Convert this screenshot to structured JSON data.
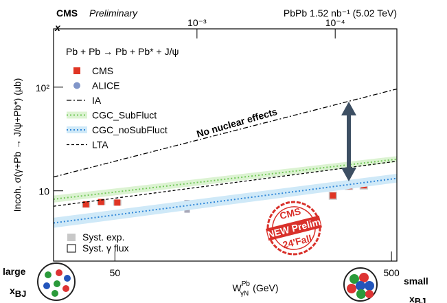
{
  "chart_data": {
    "type": "line",
    "experiment": "CMS",
    "status": "Preliminary",
    "luminosity": "PbPb 1.52 nb⁻¹ (5.02 TeV)",
    "legend_title": "Pb + Pb → Pb + Pb* + J/ψ",
    "y_title": "Incoh. σ(γ+Pb → J/ψ+Pb*) (μb)",
    "x_title": {
      "main": "W",
      "sub": "γN",
      "sup": "Pb",
      "unit": "(GeV)"
    },
    "top_axis_label": "x",
    "annotation": "No nuclear effects",
    "stamp": [
      "CMS",
      "NEW Prelim",
      "24'Fall"
    ],
    "syst_legend": [
      "Syst. exp.",
      "Syst. γ flux"
    ],
    "corner_left": {
      "text": "large",
      "var": "x",
      "sub": "BJ"
    },
    "corner_right": {
      "text": "small",
      "var": "x",
      "sub": "BJ"
    },
    "log_x": true,
    "log_y": true,
    "xlim": [
      30,
      523
    ],
    "xticks": [
      50,
      500
    ],
    "x2lim": [
      0.0109,
      3.58e-05
    ],
    "x2ticks": [
      {
        "value": 0.001,
        "label": "10⁻³"
      },
      {
        "value": 0.0001,
        "label": "10⁻⁴"
      }
    ],
    "ylim": [
      2.1,
      365
    ],
    "yticks": [
      10,
      {
        "value": 100,
        "label": "10²"
      }
    ],
    "series": [
      {
        "name": "CMS",
        "color": "#e03524",
        "style": "square",
        "x": [
          39.3,
          44.6,
          51,
          307,
          351,
          397
        ],
        "values": [
          7.4,
          7.8,
          7.7,
          9.0,
          11.1,
          11.3
        ],
        "errors": [
          0.5,
          0.5,
          0.5,
          0.8,
          0.9,
          1.0
        ]
      },
      {
        "name": "ALICE",
        "color": "#8196c9",
        "style": "circle",
        "x": [
          91.2
        ],
        "values": [
          7.15
        ],
        "errors": [
          1.0
        ]
      },
      {
        "name": "IA",
        "color": "#000000",
        "style": "dashdot",
        "x": [
          30,
          523
        ],
        "values": [
          13.6,
          96
        ]
      },
      {
        "name": "CGC_SubFluct",
        "color": "#74c95a",
        "band_color": "#dcf3d2",
        "style": "band",
        "x": [
          30,
          523
        ],
        "values": [
          8.3,
          20.2
        ],
        "lower": [
          7.7,
          18.9
        ],
        "upper": [
          9.0,
          21.6
        ]
      },
      {
        "name": "CGC_noSubFluct",
        "color": "#2f86d8",
        "band_color": "#cfe9f8",
        "style": "band",
        "x": [
          30,
          523
        ],
        "values": [
          4.9,
          13.2
        ],
        "lower": [
          4.4,
          12.0
        ],
        "upper": [
          5.5,
          14.6
        ]
      },
      {
        "name": "LTA",
        "color": "#000000",
        "style": "dashed",
        "x": [
          30,
          523
        ],
        "values": [
          7.1,
          19.3
        ]
      }
    ]
  }
}
